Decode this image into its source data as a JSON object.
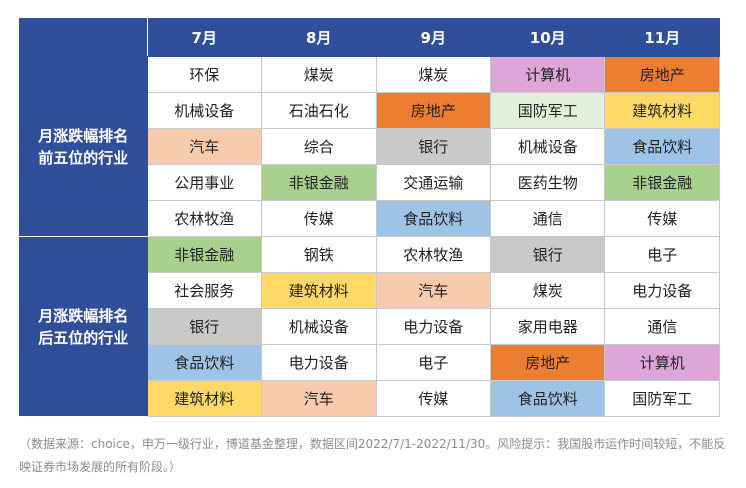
{
  "months": [
    "7月",
    "8月",
    "9月",
    "10月",
    "11月"
  ],
  "groups": [
    {
      "label": "月涨跌幅排名前五位的行业",
      "label_lines": [
        "月涨跌幅排名",
        "前五位的行业"
      ],
      "rows": [
        [
          {
            "text": "环保",
            "color": "#ffffff"
          },
          {
            "text": "煤炭",
            "color": "#ffffff"
          },
          {
            "text": "煤炭",
            "color": "#ffffff"
          },
          {
            "text": "计算机",
            "color": "#dea6d8"
          },
          {
            "text": "房地产",
            "color": "#ed7d31"
          }
        ],
        [
          {
            "text": "机械设备",
            "color": "#ffffff"
          },
          {
            "text": "石油石化",
            "color": "#ffffff"
          },
          {
            "text": "房地产",
            "color": "#ed7d31"
          },
          {
            "text": "国防军工",
            "color": "#e2efda"
          },
          {
            "text": "建筑材料",
            "color": "#ffd966"
          }
        ],
        [
          {
            "text": "汽车",
            "color": "#f8cbad"
          },
          {
            "text": "综合",
            "color": "#ffffff"
          },
          {
            "text": "银行",
            "color": "#c9c9c9"
          },
          {
            "text": "机械设备",
            "color": "#ffffff"
          },
          {
            "text": "食品饮料",
            "color": "#9dc3e6"
          }
        ],
        [
          {
            "text": "公用事业",
            "color": "#ffffff"
          },
          {
            "text": "非银金融",
            "color": "#a9d18e"
          },
          {
            "text": "交通运输",
            "color": "#ffffff"
          },
          {
            "text": "医药生物",
            "color": "#ffffff"
          },
          {
            "text": "非银金融",
            "color": "#a9d18e"
          }
        ],
        [
          {
            "text": "农林牧渔",
            "color": "#ffffff"
          },
          {
            "text": "传媒",
            "color": "#ffffff"
          },
          {
            "text": "食品饮料",
            "color": "#9dc3e6"
          },
          {
            "text": "通信",
            "color": "#ffffff"
          },
          {
            "text": "传媒",
            "color": "#ffffff"
          }
        ]
      ]
    },
    {
      "label": "月涨跌幅排名后五位的行业",
      "label_lines": [
        "月涨跌幅排名",
        "后五位的行业"
      ],
      "rows": [
        [
          {
            "text": "非银金融",
            "color": "#a9d18e"
          },
          {
            "text": "钢铁",
            "color": "#ffffff"
          },
          {
            "text": "农林牧渔",
            "color": "#ffffff"
          },
          {
            "text": "银行",
            "color": "#c9c9c9"
          },
          {
            "text": "电子",
            "color": "#ffffff"
          }
        ],
        [
          {
            "text": "社会服务",
            "color": "#ffffff"
          },
          {
            "text": "建筑材料",
            "color": "#ffd966"
          },
          {
            "text": "汽车",
            "color": "#f8cbad"
          },
          {
            "text": "煤炭",
            "color": "#ffffff"
          },
          {
            "text": "电力设备",
            "color": "#ffffff"
          }
        ],
        [
          {
            "text": "银行",
            "color": "#c9c9c9"
          },
          {
            "text": "机械设备",
            "color": "#ffffff"
          },
          {
            "text": "电力设备",
            "color": "#ffffff"
          },
          {
            "text": "家用电器",
            "color": "#ffffff"
          },
          {
            "text": "通信",
            "color": "#ffffff"
          }
        ],
        [
          {
            "text": "食品饮料",
            "color": "#9dc3e6"
          },
          {
            "text": "电力设备",
            "color": "#ffffff"
          },
          {
            "text": "电子",
            "color": "#ffffff"
          },
          {
            "text": "房地产",
            "color": "#ed7d31"
          },
          {
            "text": "计算机",
            "color": "#dea6d8"
          }
        ],
        [
          {
            "text": "建筑材料",
            "color": "#ffd966"
          },
          {
            "text": "汽车",
            "color": "#f8cbad"
          },
          {
            "text": "传媒",
            "color": "#ffffff"
          },
          {
            "text": "食品饮料",
            "color": "#9dc3e6"
          },
          {
            "text": "国防军工",
            "color": "#ffffff"
          }
        ]
      ]
    }
  ],
  "caption": "（数据来源：choice，申万一级行业，博道基金整理，数据区间2022/7/1-2022/11/30。风险提示：我国股市运作时间较短，不能反映证券市场发展的所有阶段。）",
  "colors": {
    "header_bg": "#2f4f9a",
    "header_text": "#ffffff",
    "caption_text": "#8c8c8c"
  }
}
